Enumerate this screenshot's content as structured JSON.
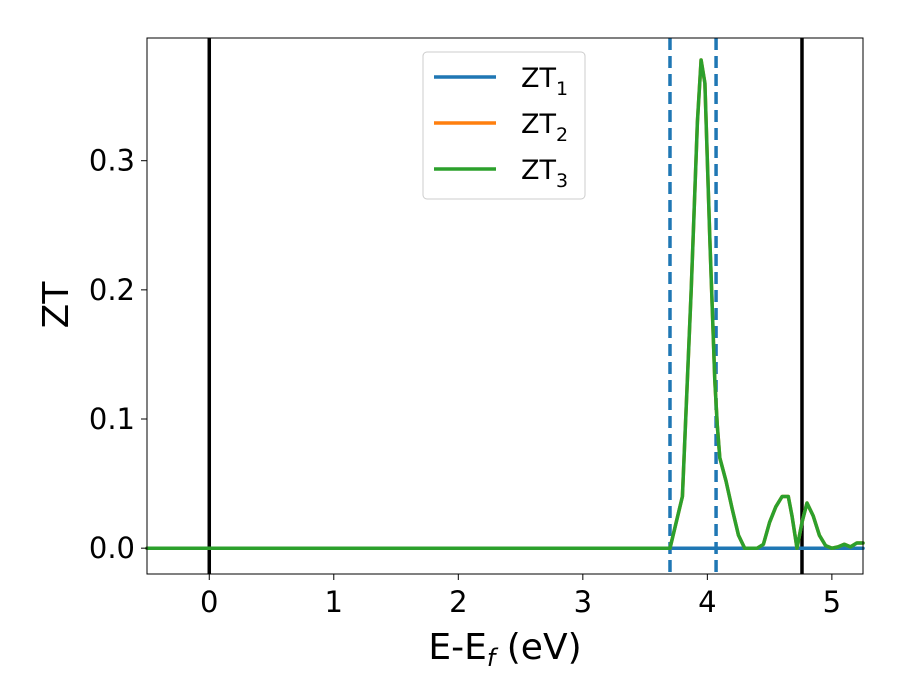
{
  "chart_data": {
    "type": "line",
    "xlabel": "E-E",
    "xlabel_sub": "f",
    "xlabel_unit": " (eV)",
    "ylabel": "ZT",
    "xlim": [
      -0.5,
      5.25
    ],
    "ylim": [
      -0.02,
      0.395
    ],
    "x_ticks": [
      0,
      1,
      2,
      3,
      4,
      5
    ],
    "x_tick_labels": [
      "0",
      "1",
      "2",
      "3",
      "4",
      "5"
    ],
    "y_ticks": [
      0.0,
      0.1,
      0.2,
      0.3
    ],
    "y_tick_labels": [
      "0.0",
      "0.1",
      "0.2",
      "0.3"
    ],
    "grid": false,
    "legend_position": "top-center",
    "vertical_lines": [
      {
        "x": 0.0,
        "style": "solid",
        "color": "#000000"
      },
      {
        "x": 3.7,
        "style": "dashed",
        "color": "#1f77b4"
      },
      {
        "x": 4.07,
        "style": "dashed",
        "color": "#1f77b4"
      },
      {
        "x": 4.76,
        "style": "solid",
        "color": "#000000"
      }
    ],
    "series": [
      {
        "name": "ZT",
        "name_sub": "1",
        "color": "#1f77b4",
        "x": [
          -0.5,
          5.25
        ],
        "y": [
          0.0,
          0.0
        ]
      },
      {
        "name": "ZT",
        "name_sub": "2",
        "color": "#ff7f0e",
        "x": [
          -0.5,
          3.7,
          3.8,
          3.87,
          3.92,
          3.95,
          3.98,
          4.02,
          4.06,
          4.08,
          4.1,
          4.15,
          4.2,
          4.25,
          4.3,
          4.35,
          4.4,
          4.45,
          4.5,
          4.55,
          4.6,
          4.65,
          4.68,
          4.72,
          4.76,
          4.8,
          4.85,
          4.9,
          4.95,
          5.0,
          5.05,
          5.1,
          5.15,
          5.2,
          5.25
        ],
        "y": [
          0.0,
          0.0,
          0.04,
          0.2,
          0.33,
          0.378,
          0.36,
          0.24,
          0.13,
          0.095,
          0.07,
          0.052,
          0.03,
          0.01,
          0.0,
          0.0,
          0.0,
          0.003,
          0.02,
          0.032,
          0.04,
          0.04,
          0.025,
          0.0,
          0.02,
          0.035,
          0.025,
          0.01,
          0.002,
          0.0,
          0.001,
          0.003,
          0.001,
          0.004,
          0.004
        ]
      },
      {
        "name": "ZT",
        "name_sub": "3",
        "color": "#2ca02c",
        "x": [
          -0.5,
          3.7,
          3.8,
          3.87,
          3.92,
          3.95,
          3.98,
          4.02,
          4.06,
          4.08,
          4.1,
          4.15,
          4.2,
          4.25,
          4.3,
          4.35,
          4.4,
          4.45,
          4.5,
          4.55,
          4.6,
          4.65,
          4.68,
          4.72,
          4.76,
          4.8,
          4.85,
          4.9,
          4.95,
          5.0,
          5.05,
          5.1,
          5.15,
          5.2,
          5.25
        ],
        "y": [
          0.0,
          0.0,
          0.04,
          0.2,
          0.33,
          0.378,
          0.36,
          0.24,
          0.13,
          0.095,
          0.07,
          0.052,
          0.03,
          0.01,
          0.0,
          0.0,
          0.0,
          0.003,
          0.02,
          0.032,
          0.04,
          0.04,
          0.025,
          0.0,
          0.02,
          0.035,
          0.025,
          0.01,
          0.002,
          0.0,
          0.001,
          0.003,
          0.001,
          0.004,
          0.004
        ]
      }
    ]
  }
}
